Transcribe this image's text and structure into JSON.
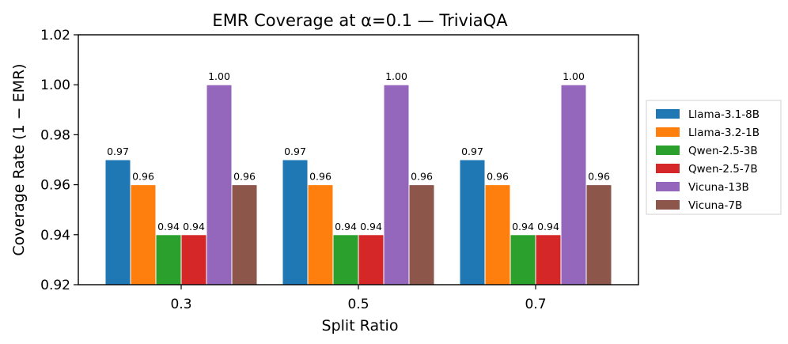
{
  "chart_data": {
    "type": "bar",
    "title": "EMR Coverage at α=0.1 — TriviaQA",
    "xlabel": "Split Ratio",
    "ylabel": "Coverage Rate (1 − EMR)",
    "categories": [
      "0.3",
      "0.5",
      "0.7"
    ],
    "ylim": [
      0.92,
      1.02
    ],
    "yticks": [
      "0.92",
      "0.94",
      "0.96",
      "0.98",
      "1.00",
      "1.02"
    ],
    "ytick_values": [
      0.92,
      0.94,
      0.96,
      0.98,
      1.0,
      1.02
    ],
    "series": [
      {
        "name": "Llama-3.1-8B",
        "color": "#1f77b4",
        "values": [
          0.97,
          0.97,
          0.97
        ],
        "labels": [
          "0.97",
          "0.97",
          "0.97"
        ]
      },
      {
        "name": "Llama-3.2-1B",
        "color": "#ff7f0e",
        "values": [
          0.96,
          0.96,
          0.96
        ],
        "labels": [
          "0.96",
          "0.96",
          "0.96"
        ]
      },
      {
        "name": "Qwen-2.5-3B",
        "color": "#2ca02c",
        "values": [
          0.94,
          0.94,
          0.94
        ],
        "labels": [
          "0.94",
          "0.94",
          "0.94"
        ]
      },
      {
        "name": "Qwen-2.5-7B",
        "color": "#d62728",
        "values": [
          0.94,
          0.94,
          0.94
        ],
        "labels": [
          "0.94",
          "0.94",
          "0.94"
        ]
      },
      {
        "name": "Vicuna-13B",
        "color": "#9467bd",
        "values": [
          1.0,
          1.0,
          1.0
        ],
        "labels": [
          "1.00",
          "1.00",
          "1.00"
        ]
      },
      {
        "name": "Vicuna-7B",
        "color": "#8c564b",
        "values": [
          0.96,
          0.96,
          0.96
        ],
        "labels": [
          "0.96",
          "0.96",
          "0.96"
        ]
      }
    ],
    "legend": "right",
    "grid": false
  }
}
